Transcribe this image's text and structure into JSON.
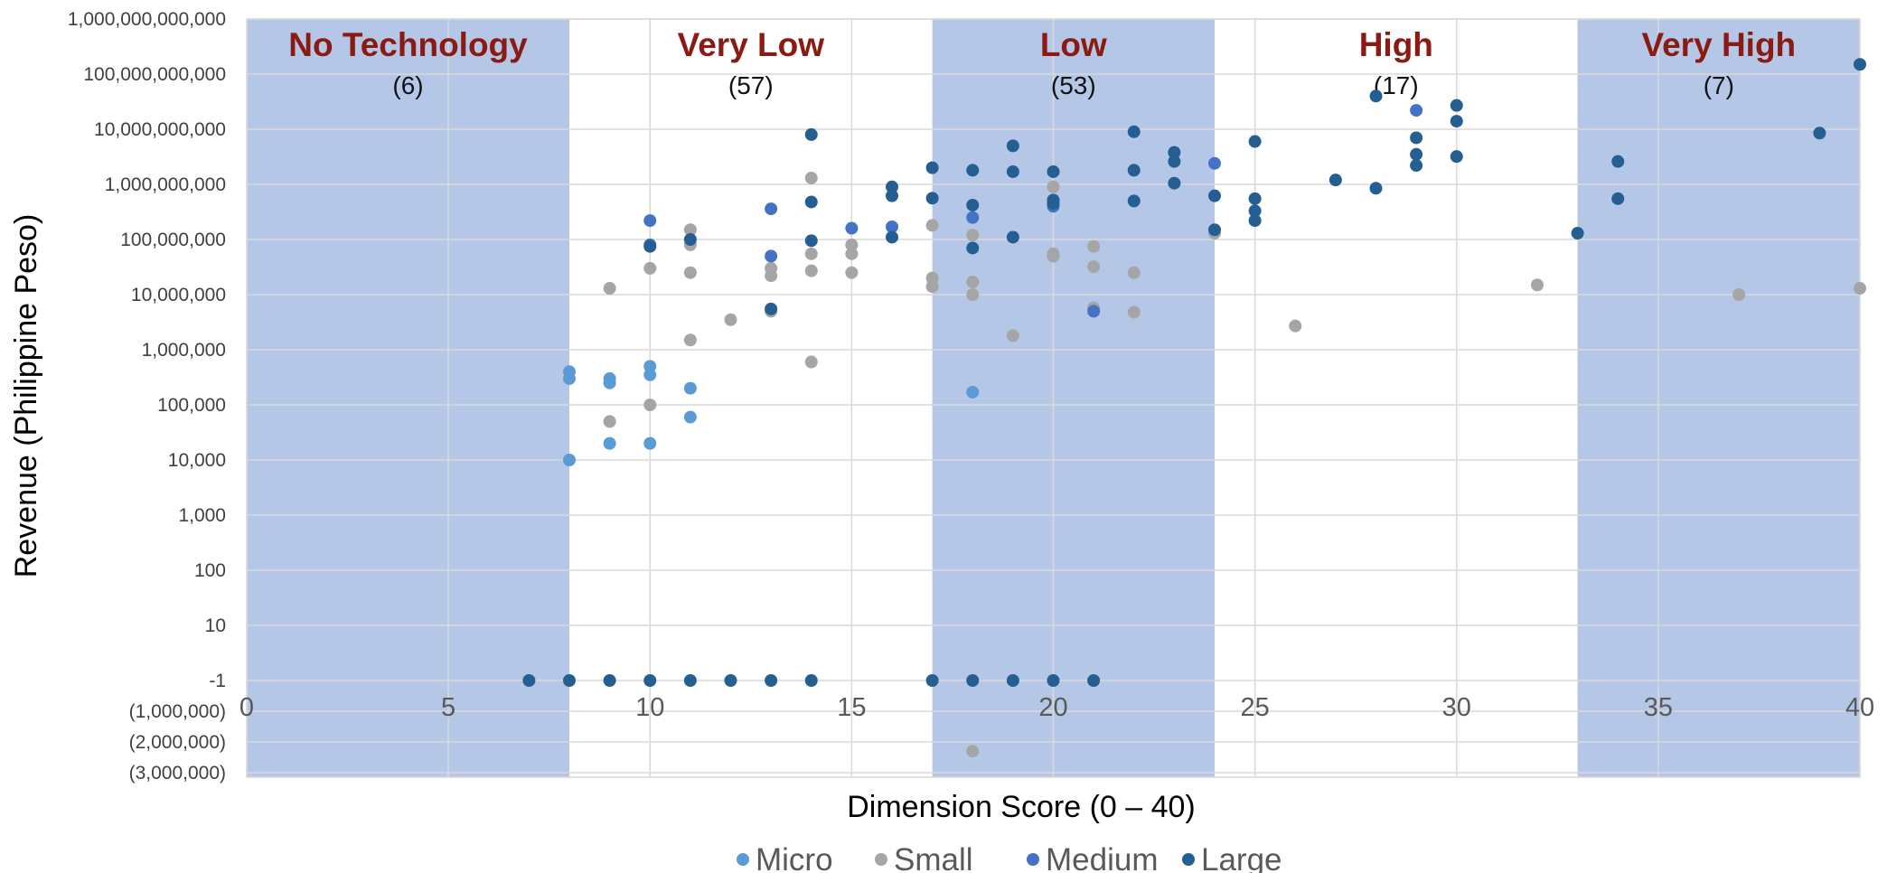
{
  "chart_data": {
    "type": "scatter",
    "xlabel": "Dimension Score (0 – 40)",
    "ylabel": "Revenue (Philippine Peso)",
    "xlim": [
      0,
      40
    ],
    "x_ticks": [
      "0",
      "5",
      "10",
      "15",
      "20",
      "25",
      "30",
      "35",
      "40"
    ],
    "y_ticks": [
      "1,000,000,000,000",
      "100,000,000,000",
      "10,000,000,000",
      "1,000,000,000",
      "100,000,000",
      "10,000,000",
      "1,000,000",
      "100,000",
      "10,000",
      "1,000",
      "100",
      "10",
      "-1",
      "(1,000,000)",
      "(2,000,000)",
      "(3,000,000)"
    ],
    "y_scale": "log with -1 baseline and negative values below",
    "grid": true,
    "legend_position": "bottom",
    "bands": [
      {
        "label": "No Technology",
        "count": "(6)",
        "from": 0,
        "to": 8,
        "shaded": true
      },
      {
        "label": "Very Low",
        "count": "(57)",
        "from": 8,
        "to": 17,
        "shaded": false
      },
      {
        "label": "Low",
        "count": "(53)",
        "from": 17,
        "to": 24,
        "shaded": true
      },
      {
        "label": "High",
        "count": "(17)",
        "from": 24,
        "to": 33,
        "shaded": false
      },
      {
        "label": "Very High",
        "count": "(7)",
        "from": 33,
        "to": 40,
        "shaded": true
      }
    ],
    "series": [
      {
        "name": "Micro",
        "color": "#5b9bd5",
        "points": [
          [
            8,
            400000
          ],
          [
            8,
            300000
          ],
          [
            8,
            10000
          ],
          [
            9,
            300000
          ],
          [
            9,
            250000
          ],
          [
            9,
            20000
          ],
          [
            10,
            500000
          ],
          [
            10,
            350000
          ],
          [
            10,
            20000
          ],
          [
            11,
            200000
          ],
          [
            11,
            60000
          ],
          [
            18,
            170000
          ]
        ]
      },
      {
        "name": "Small",
        "color": "#a5a5a5",
        "points": [
          [
            9,
            13000000
          ],
          [
            9,
            50000
          ],
          [
            10,
            30000000
          ],
          [
            10,
            100000
          ],
          [
            11,
            150000000
          ],
          [
            11,
            80000000
          ],
          [
            11,
            25000000
          ],
          [
            11,
            1500000
          ],
          [
            12,
            3500000
          ],
          [
            13,
            30000000
          ],
          [
            13,
            22000000
          ],
          [
            13,
            5000000
          ],
          [
            14,
            1300000000
          ],
          [
            14,
            55000000
          ],
          [
            14,
            27000000
          ],
          [
            14,
            600000
          ],
          [
            15,
            80000000
          ],
          [
            15,
            55000000
          ],
          [
            15,
            25000000
          ],
          [
            17,
            180000000
          ],
          [
            17,
            20000000
          ],
          [
            17,
            14000000
          ],
          [
            18,
            120000000
          ],
          [
            18,
            17000000
          ],
          [
            18,
            10000000
          ],
          [
            18,
            -2300000
          ],
          [
            19,
            1800000
          ],
          [
            20,
            900000000
          ],
          [
            20,
            55000000
          ],
          [
            20,
            50000000
          ],
          [
            21,
            75000000
          ],
          [
            21,
            32000000
          ],
          [
            21,
            5800000
          ],
          [
            22,
            25000000
          ],
          [
            22,
            4800000
          ],
          [
            24,
            130000000
          ],
          [
            26,
            2700000
          ],
          [
            32,
            15000000
          ],
          [
            37,
            10000000
          ],
          [
            40,
            13000000
          ]
        ]
      },
      {
        "name": "Medium",
        "color": "#4472c4",
        "points": [
          [
            10,
            220000000
          ],
          [
            10,
            80000000
          ],
          [
            13,
            360000000
          ],
          [
            13,
            50000000
          ],
          [
            15,
            160000000
          ],
          [
            16,
            170000000
          ],
          [
            18,
            250000000
          ],
          [
            20,
            400000000
          ],
          [
            21,
            5000000
          ],
          [
            24,
            2400000000
          ],
          [
            29,
            22000000000
          ]
        ]
      },
      {
        "name": "Large",
        "color": "#255e91",
        "points": [
          [
            7,
            -1
          ],
          [
            8,
            -1
          ],
          [
            9,
            -1
          ],
          [
            10,
            -1
          ],
          [
            10,
            75000000
          ],
          [
            11,
            -1
          ],
          [
            11,
            100000000
          ],
          [
            12,
            -1
          ],
          [
            13,
            -1
          ],
          [
            13,
            5500000
          ],
          [
            14,
            -1
          ],
          [
            14,
            8000000000
          ],
          [
            14,
            480000000
          ],
          [
            14,
            95000000
          ],
          [
            16,
            900000000
          ],
          [
            16,
            620000000
          ],
          [
            16,
            110000000
          ],
          [
            17,
            -1
          ],
          [
            17,
            2000000000
          ],
          [
            17,
            560000000
          ],
          [
            18,
            -1
          ],
          [
            18,
            1800000000
          ],
          [
            18,
            420000000
          ],
          [
            18,
            70000000
          ],
          [
            19,
            -1
          ],
          [
            19,
            5000000000
          ],
          [
            19,
            1700000000
          ],
          [
            19,
            110000000
          ],
          [
            20,
            -1
          ],
          [
            20,
            1700000000
          ],
          [
            20,
            520000000
          ],
          [
            20,
            450000000
          ],
          [
            21,
            -1
          ],
          [
            22,
            9000000000
          ],
          [
            22,
            1800000000
          ],
          [
            22,
            500000000
          ],
          [
            23,
            3800000000
          ],
          [
            23,
            2600000000
          ],
          [
            23,
            1050000000
          ],
          [
            24,
            620000000
          ],
          [
            24,
            150000000
          ],
          [
            25,
            6000000000
          ],
          [
            25,
            550000000
          ],
          [
            25,
            330000000
          ],
          [
            25,
            220000000
          ],
          [
            27,
            1200000000
          ],
          [
            28,
            40000000000
          ],
          [
            28,
            850000000
          ],
          [
            29,
            7000000000
          ],
          [
            29,
            3500000000
          ],
          [
            29,
            2200000000
          ],
          [
            30,
            27000000000
          ],
          [
            30,
            14000000000
          ],
          [
            30,
            3200000000
          ],
          [
            33,
            130000000
          ],
          [
            34,
            2600000000
          ],
          [
            34,
            550000000
          ],
          [
            39,
            8500000000
          ],
          [
            40,
            150000000000
          ]
        ]
      }
    ]
  }
}
